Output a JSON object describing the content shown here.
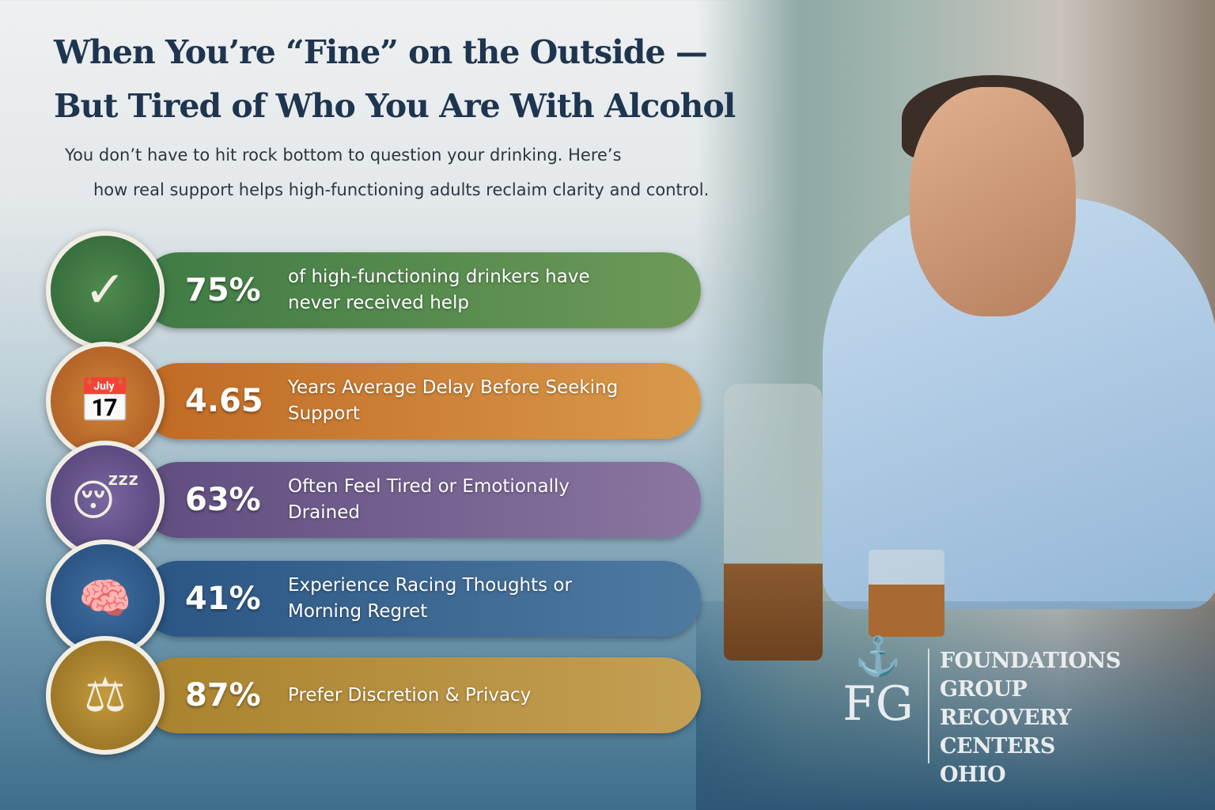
{
  "title": {
    "line1": "When You’re “Fine” on the Outside —",
    "line2": "But Tired of Who You Are With Alcohol"
  },
  "subtitle": {
    "line1": "You don’t have to hit rock bottom to question your drinking. Here’s",
    "line2": "how real support helps high-functioning adults reclaim clarity and control."
  },
  "stats": [
    {
      "value": "75%",
      "text": "of high-functioning drinkers have never received help",
      "icon": "shield-check-icon",
      "color": "#4c8048"
    },
    {
      "value": "4.65",
      "text": "Years Average Delay Before Seeking Support",
      "icon": "calendar-clock-icon",
      "color": "#c97a2e"
    },
    {
      "value": "63%",
      "text": "Often Feel Tired or Emotionally Drained",
      "icon": "tired-face-icon",
      "color": "#6d5a8c"
    },
    {
      "value": "41%",
      "text": "Experience Racing Thoughts or Morning Regret",
      "icon": "brain-lightning-icon",
      "color": "#315f8a"
    },
    {
      "value": "87%",
      "text": "Prefer Discretion & Privacy",
      "icon": "scales-icon",
      "color": "#b48b33"
    }
  ],
  "logo": {
    "monogram": "FG",
    "lines": [
      "FOUNDATIONS",
      "GROUP",
      "RECOVERY",
      "CENTERS",
      "OHIO"
    ]
  }
}
